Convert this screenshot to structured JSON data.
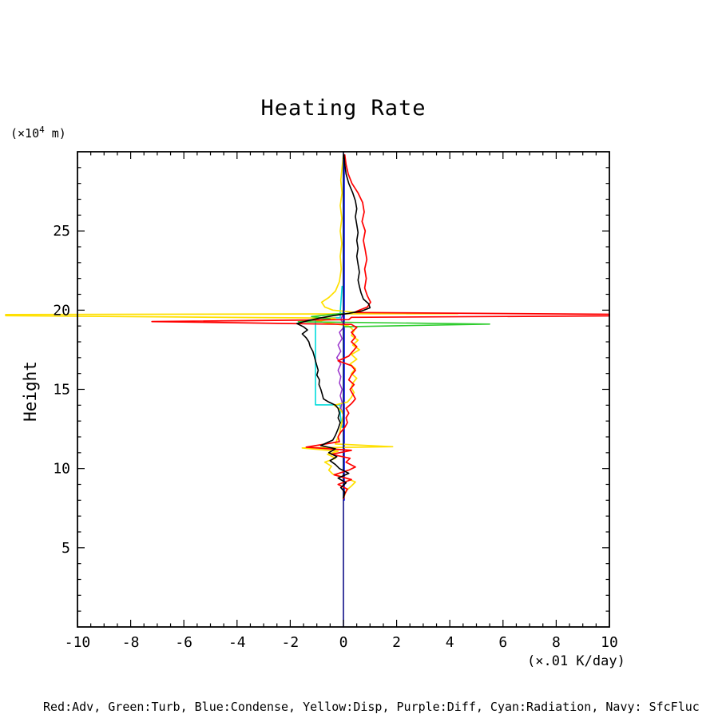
{
  "title": "Heating Rate",
  "axis": {
    "y_unit_prefix": "(×10",
    "y_unit_sup": "4",
    "y_unit_suffix": " m)",
    "y_label": "Height",
    "x_unit_label": "(×.01 K/day)"
  },
  "legend_text": "Red:Adv, Green:Turb, Blue:Condense, Yellow:Disp, Purple:Diff, Cyan:Radiation, Navy: SfcFluc",
  "chart_data": {
    "type": "line",
    "title": "Heating Rate",
    "xlabel": "(×.01 K/day)",
    "ylabel": "Height (×10^4 m)",
    "orientation": "vertical profiles: x = heating rate value, y = height",
    "xlim": [
      -10,
      10
    ],
    "ylim": [
      0,
      30
    ],
    "xticks": [
      -10,
      -8,
      -6,
      -4,
      -2,
      0,
      2,
      4,
      6,
      8,
      10
    ],
    "yticks": [
      5,
      10,
      15,
      20,
      25
    ],
    "x_minor_step": 0.5,
    "y_minor_step": 1,
    "grid": false,
    "legend_position": "bottom-caption",
    "series": [
      {
        "name": "Radiation",
        "color": "#00dcdc",
        "width": 1.6,
        "points": [
          [
            -0.05,
            21.5
          ],
          [
            -0.12,
            19.9
          ],
          [
            -0.12,
            19.52
          ],
          [
            -1.05,
            19.52
          ],
          [
            -1.05,
            14.02
          ],
          [
            -0.12,
            14.02
          ],
          [
            -0.12,
            13.4
          ],
          [
            -0.05,
            12.6
          ]
        ]
      },
      {
        "name": "Diff",
        "color": "#9932cc",
        "width": 1.5,
        "points": [
          [
            0.0,
            29.8
          ],
          [
            0.0,
            19.8
          ],
          [
            -0.1,
            19.4
          ],
          [
            0.05,
            19.0
          ],
          [
            -0.15,
            18.6
          ],
          [
            -0.05,
            18.2
          ],
          [
            -0.2,
            17.8
          ],
          [
            -0.1,
            17.4
          ],
          [
            -0.25,
            17.0
          ],
          [
            -0.1,
            16.6
          ],
          [
            -0.2,
            16.2
          ],
          [
            -0.1,
            15.8
          ],
          [
            -0.15,
            15.4
          ],
          [
            -0.05,
            15.0
          ],
          [
            -0.12,
            14.6
          ],
          [
            -0.05,
            14.2
          ],
          [
            -0.1,
            13.8
          ],
          [
            0.0,
            13.4
          ],
          [
            0.0,
            8.1
          ]
        ]
      },
      {
        "name": "Condense",
        "color": "#0000ff",
        "width": 1.5,
        "points": [
          [
            0.03,
            29.8
          ],
          [
            0.03,
            8.0
          ]
        ]
      },
      {
        "name": "Disp",
        "color": "#ffe000",
        "width": 1.7,
        "points": [
          [
            0.0,
            29.8
          ],
          [
            -0.05,
            29.0
          ],
          [
            -0.1,
            28.2
          ],
          [
            -0.05,
            27.4
          ],
          [
            -0.12,
            26.6
          ],
          [
            -0.06,
            25.8
          ],
          [
            -0.12,
            25.0
          ],
          [
            -0.06,
            24.2
          ],
          [
            -0.12,
            23.4
          ],
          [
            -0.08,
            22.6
          ],
          [
            -0.15,
            21.8
          ],
          [
            -0.3,
            21.2
          ],
          [
            -0.55,
            20.8
          ],
          [
            -0.82,
            20.5
          ],
          [
            -0.7,
            20.2
          ],
          [
            -0.4,
            20.0
          ],
          [
            0.5,
            19.85
          ],
          [
            4.3,
            19.78
          ],
          [
            -12.7,
            19.72
          ],
          [
            -12.7,
            19.65
          ],
          [
            -0.3,
            19.5
          ],
          [
            -0.55,
            19.4
          ],
          [
            -1.0,
            19.3
          ],
          [
            -0.4,
            19.15
          ],
          [
            0.2,
            19.0
          ],
          [
            0.4,
            18.7
          ],
          [
            0.3,
            18.4
          ],
          [
            0.55,
            18.1
          ],
          [
            0.35,
            17.8
          ],
          [
            0.6,
            17.5
          ],
          [
            0.3,
            17.2
          ],
          [
            0.5,
            16.9
          ],
          [
            0.25,
            16.6
          ],
          [
            0.45,
            16.3
          ],
          [
            0.3,
            16.0
          ],
          [
            0.5,
            15.7
          ],
          [
            0.35,
            15.4
          ],
          [
            0.3,
            15.1
          ],
          [
            0.4,
            14.8
          ],
          [
            0.3,
            14.5
          ],
          [
            0.15,
            14.2
          ],
          [
            -0.35,
            14.0
          ],
          [
            -0.1,
            13.7
          ],
          [
            0.0,
            13.4
          ],
          [
            -0.05,
            13.0
          ],
          [
            -0.1,
            12.6
          ],
          [
            -0.15,
            12.2
          ],
          [
            -0.25,
            11.8
          ],
          [
            -0.3,
            11.55
          ],
          [
            1.85,
            11.38
          ],
          [
            -1.55,
            11.3
          ],
          [
            -0.2,
            11.1
          ],
          [
            -0.6,
            10.9
          ],
          [
            -0.3,
            10.65
          ],
          [
            -0.7,
            10.4
          ],
          [
            -0.45,
            10.15
          ],
          [
            -0.55,
            9.9
          ],
          [
            -0.4,
            9.65
          ],
          [
            0.1,
            9.4
          ],
          [
            0.45,
            9.15
          ],
          [
            0.3,
            8.9
          ],
          [
            0.1,
            8.6
          ],
          [
            0.05,
            8.35
          ],
          [
            0.0,
            8.1
          ]
        ]
      },
      {
        "name": "Turb",
        "color": "#2ecc2e",
        "width": 1.6,
        "points": [
          [
            0.0,
            29.8
          ],
          [
            0.0,
            19.8
          ],
          [
            -1.2,
            19.6
          ],
          [
            -0.5,
            19.45
          ],
          [
            -1.7,
            19.27
          ],
          [
            5.5,
            19.12
          ],
          [
            0.0,
            18.95
          ],
          [
            0.0,
            8.1
          ]
        ]
      },
      {
        "name": "SfcFluc",
        "color": "#000080",
        "width": 1.5,
        "points": [
          [
            0.0,
            30.0
          ],
          [
            0.0,
            0.0
          ]
        ]
      },
      {
        "name": "Adv",
        "color": "#ff0000",
        "width": 1.7,
        "points": [
          [
            0.05,
            29.8
          ],
          [
            0.1,
            29.2
          ],
          [
            0.18,
            28.6
          ],
          [
            0.32,
            28.0
          ],
          [
            0.55,
            27.4
          ],
          [
            0.72,
            26.8
          ],
          [
            0.78,
            26.2
          ],
          [
            0.7,
            25.6
          ],
          [
            0.82,
            25.0
          ],
          [
            0.75,
            24.4
          ],
          [
            0.82,
            23.8
          ],
          [
            0.88,
            23.2
          ],
          [
            0.8,
            22.6
          ],
          [
            0.86,
            22.0
          ],
          [
            0.8,
            21.4
          ],
          [
            0.9,
            20.9
          ],
          [
            1.02,
            20.5
          ],
          [
            0.9,
            20.2
          ],
          [
            0.6,
            20.0
          ],
          [
            0.4,
            19.85
          ],
          [
            10.0,
            19.74
          ],
          [
            10.0,
            19.64
          ],
          [
            0.3,
            19.55
          ],
          [
            0.2,
            19.4
          ],
          [
            -7.2,
            19.28
          ],
          [
            0.3,
            19.1
          ],
          [
            0.5,
            18.9
          ],
          [
            0.3,
            18.6
          ],
          [
            0.45,
            18.3
          ],
          [
            0.3,
            18.0
          ],
          [
            0.5,
            17.7
          ],
          [
            0.35,
            17.4
          ],
          [
            0.2,
            17.1
          ],
          [
            -0.2,
            16.8
          ],
          [
            0.3,
            16.5
          ],
          [
            0.45,
            16.2
          ],
          [
            0.3,
            15.9
          ],
          [
            0.2,
            15.6
          ],
          [
            0.4,
            15.3
          ],
          [
            0.25,
            15.0
          ],
          [
            0.35,
            14.7
          ],
          [
            0.45,
            14.4
          ],
          [
            0.3,
            14.1
          ],
          [
            0.1,
            13.8
          ],
          [
            0.2,
            13.5
          ],
          [
            0.1,
            13.2
          ],
          [
            0.15,
            12.9
          ],
          [
            0.05,
            12.6
          ],
          [
            -0.1,
            12.3
          ],
          [
            -0.2,
            12.0
          ],
          [
            -0.15,
            11.7
          ],
          [
            -1.4,
            11.35
          ],
          [
            0.3,
            11.15
          ],
          [
            -0.45,
            10.9
          ],
          [
            0.25,
            10.65
          ],
          [
            0.1,
            10.4
          ],
          [
            0.45,
            10.1
          ],
          [
            0.2,
            9.9
          ],
          [
            -0.35,
            9.6
          ],
          [
            0.3,
            9.3
          ],
          [
            -0.2,
            9.0
          ],
          [
            0.15,
            8.7
          ],
          [
            0.05,
            8.4
          ],
          [
            0.0,
            8.1
          ]
        ]
      },
      {
        "name": "Total-black-unlabeled",
        "color": "#000000",
        "width": 1.6,
        "points": [
          [
            0.02,
            29.8
          ],
          [
            0.05,
            29.2
          ],
          [
            0.1,
            28.6
          ],
          [
            0.2,
            28.0
          ],
          [
            0.35,
            27.4
          ],
          [
            0.45,
            26.9
          ],
          [
            0.5,
            26.4
          ],
          [
            0.45,
            25.9
          ],
          [
            0.5,
            25.4
          ],
          [
            0.55,
            24.9
          ],
          [
            0.5,
            24.4
          ],
          [
            0.55,
            23.9
          ],
          [
            0.5,
            23.4
          ],
          [
            0.55,
            22.9
          ],
          [
            0.6,
            22.4
          ],
          [
            0.55,
            21.9
          ],
          [
            0.6,
            21.5
          ],
          [
            0.66,
            21.1
          ],
          [
            0.75,
            20.7
          ],
          [
            0.95,
            20.4
          ],
          [
            1.0,
            20.15
          ],
          [
            0.7,
            19.95
          ],
          [
            0.2,
            19.8
          ],
          [
            -0.4,
            19.65
          ],
          [
            -0.9,
            19.5
          ],
          [
            -1.3,
            19.35
          ],
          [
            -1.75,
            19.15
          ],
          [
            -1.5,
            18.95
          ],
          [
            -1.35,
            18.75
          ],
          [
            -1.55,
            18.5
          ],
          [
            -1.4,
            18.25
          ],
          [
            -1.3,
            18.0
          ],
          [
            -1.25,
            17.7
          ],
          [
            -1.15,
            17.4
          ],
          [
            -1.1,
            17.1
          ],
          [
            -1.05,
            16.8
          ],
          [
            -1.0,
            16.5
          ],
          [
            -0.95,
            16.2
          ],
          [
            -1.0,
            15.9
          ],
          [
            -0.9,
            15.6
          ],
          [
            -0.92,
            15.3
          ],
          [
            -0.85,
            15.0
          ],
          [
            -0.8,
            14.7
          ],
          [
            -0.75,
            14.4
          ],
          [
            -0.55,
            14.2
          ],
          [
            -0.3,
            14.0
          ],
          [
            -0.2,
            13.8
          ],
          [
            -0.15,
            13.5
          ],
          [
            -0.2,
            13.2
          ],
          [
            -0.12,
            12.9
          ],
          [
            -0.2,
            12.5
          ],
          [
            -0.3,
            12.1
          ],
          [
            -0.4,
            11.8
          ],
          [
            -0.85,
            11.45
          ],
          [
            -0.3,
            11.25
          ],
          [
            -0.55,
            11.0
          ],
          [
            -0.25,
            10.75
          ],
          [
            -0.5,
            10.5
          ],
          [
            -0.3,
            10.25
          ],
          [
            -0.15,
            10.0
          ],
          [
            0.2,
            9.7
          ],
          [
            -0.2,
            9.4
          ],
          [
            0.1,
            9.1
          ],
          [
            -0.1,
            8.8
          ],
          [
            0.05,
            8.5
          ],
          [
            0.0,
            8.15
          ]
        ]
      }
    ]
  }
}
